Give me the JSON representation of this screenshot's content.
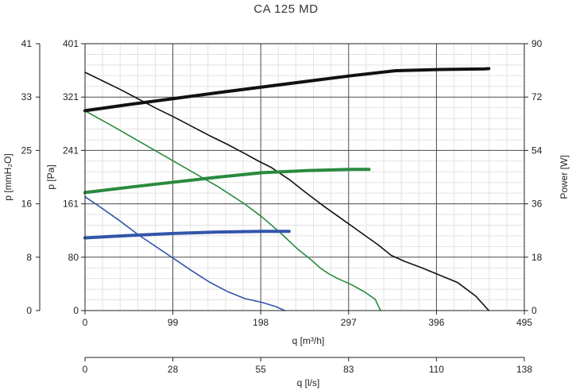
{
  "chart_data": {
    "type": "line",
    "title": "CA 125 MD",
    "xlabel": "q [m³/h]",
    "x_ticks": [
      "0",
      "99",
      "198",
      "297",
      "396",
      "495"
    ],
    "xlim": [
      0,
      495
    ],
    "x2label": "q [l/s]",
    "x2_ticks": [
      "0",
      "28",
      "55",
      "83",
      "110",
      "138"
    ],
    "x2lim": [
      0,
      138
    ],
    "ylabel": "p [Pa]",
    "y_ticks": [
      "0",
      "80",
      "161",
      "241",
      "321",
      "401"
    ],
    "ylim": [
      0,
      401
    ],
    "y2label": "p [mmH₂O]",
    "y2_ticks": [
      "0",
      "8",
      "16",
      "25",
      "33",
      "41"
    ],
    "y2lim": [
      0,
      41
    ],
    "y3label": "Power [W]",
    "y3_ticks": [
      "0",
      "18",
      "36",
      "54",
      "72",
      "90"
    ],
    "y3lim": [
      0,
      90
    ],
    "grid": true,
    "series": [
      {
        "kind": "pressure",
        "axis": "pa",
        "color": "#111111",
        "points": [
          [
            0,
            358
          ],
          [
            20,
            345
          ],
          [
            40,
            332
          ],
          [
            60,
            318
          ],
          [
            80,
            304
          ],
          [
            100,
            291
          ],
          [
            120,
            277
          ],
          [
            140,
            263
          ],
          [
            160,
            250
          ],
          [
            180,
            236
          ],
          [
            195,
            225
          ],
          [
            210,
            215
          ],
          [
            230,
            197
          ],
          [
            250,
            176
          ],
          [
            270,
            156
          ],
          [
            290,
            137
          ],
          [
            310,
            118
          ],
          [
            330,
            99
          ],
          [
            345,
            83
          ],
          [
            360,
            74
          ],
          [
            380,
            64
          ],
          [
            400,
            53
          ],
          [
            420,
            42
          ],
          [
            440,
            22
          ],
          [
            455,
            0
          ]
        ]
      },
      {
        "kind": "pressure",
        "axis": "pa",
        "color": "#2a8a3e",
        "points": [
          [
            0,
            300
          ],
          [
            30,
            278
          ],
          [
            60,
            255
          ],
          [
            90,
            232
          ],
          [
            120,
            209
          ],
          [
            150,
            186
          ],
          [
            180,
            160
          ],
          [
            200,
            140
          ],
          [
            220,
            117
          ],
          [
            240,
            92
          ],
          [
            255,
            76
          ],
          [
            265,
            64
          ],
          [
            275,
            55
          ],
          [
            285,
            48
          ],
          [
            300,
            39
          ],
          [
            315,
            28
          ],
          [
            327,
            17
          ],
          [
            333,
            0
          ]
        ]
      },
      {
        "kind": "pressure",
        "axis": "pa",
        "color": "#3355aa",
        "points": [
          [
            0,
            171
          ],
          [
            20,
            153
          ],
          [
            40,
            134
          ],
          [
            60,
            114
          ],
          [
            80,
            96
          ],
          [
            100,
            78
          ],
          [
            120,
            60
          ],
          [
            140,
            43
          ],
          [
            160,
            29
          ],
          [
            180,
            18
          ],
          [
            200,
            12
          ],
          [
            215,
            6
          ],
          [
            225,
            0
          ]
        ]
      },
      {
        "kind": "power",
        "axis": "w",
        "color": "#111111",
        "points": [
          [
            0,
            67.4
          ],
          [
            50,
            69.5
          ],
          [
            100,
            71.5
          ],
          [
            150,
            73.5
          ],
          [
            200,
            75.4
          ],
          [
            250,
            77.3
          ],
          [
            300,
            79.2
          ],
          [
            350,
            80.9
          ],
          [
            400,
            81.3
          ],
          [
            450,
            81.5
          ],
          [
            455,
            81.6
          ]
        ]
      },
      {
        "kind": "power",
        "axis": "w",
        "color": "#2a8a3e",
        "points": [
          [
            0,
            39.8
          ],
          [
            50,
            41.6
          ],
          [
            100,
            43.3
          ],
          [
            150,
            45.0
          ],
          [
            200,
            46.5
          ],
          [
            250,
            47.2
          ],
          [
            300,
            47.6
          ],
          [
            320,
            47.6
          ]
        ]
      },
      {
        "kind": "power",
        "axis": "w",
        "color": "#3355aa",
        "points": [
          [
            0,
            24.5
          ],
          [
            50,
            25.3
          ],
          [
            100,
            26.0
          ],
          [
            150,
            26.5
          ],
          [
            200,
            26.7
          ],
          [
            230,
            26.7
          ]
        ]
      }
    ]
  }
}
